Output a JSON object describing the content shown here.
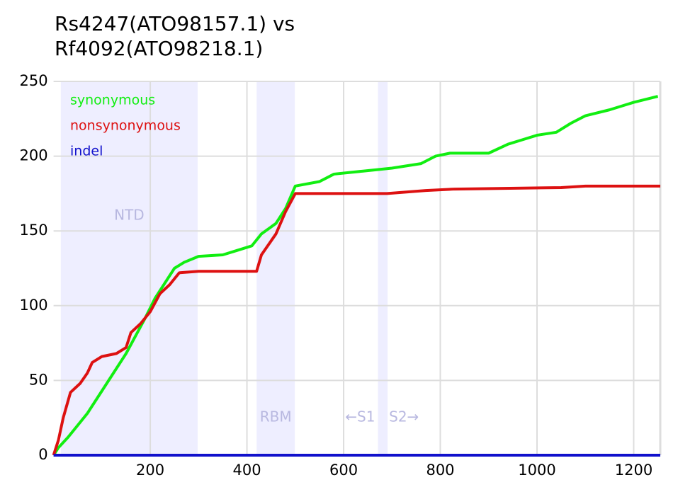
{
  "chart_data": {
    "type": "line",
    "title": [
      "Rs4247(ATO98157.1) vs",
      "Rf4092(ATO98218.1)"
    ],
    "xlim": [
      0,
      1255
    ],
    "ylim": [
      0,
      250
    ],
    "xticks": [
      200,
      400,
      600,
      800,
      1000,
      1200
    ],
    "yticks": [
      0,
      50,
      100,
      150,
      200,
      250
    ],
    "grid": true,
    "legend": "upper left",
    "regions": [
      {
        "label": "NTD",
        "start": 15,
        "end": 298
      },
      {
        "label": "RBM",
        "start": 420,
        "end": 499
      },
      {
        "start": 671,
        "end": 691
      }
    ],
    "annotations": [
      "←S1",
      "S2→"
    ],
    "series": [
      {
        "name": "synonymous",
        "color": "#11ee11",
        "x": [
          0,
          10,
          30,
          50,
          70,
          90,
          110,
          130,
          150,
          170,
          190,
          210,
          230,
          250,
          270,
          300,
          350,
          380,
          410,
          430,
          460,
          480,
          500,
          550,
          580,
          640,
          700,
          760,
          790,
          820,
          900,
          940,
          970,
          1000,
          1040,
          1070,
          1100,
          1150,
          1200,
          1250
        ],
        "values": [
          0,
          5,
          12,
          20,
          28,
          38,
          48,
          58,
          68,
          80,
          92,
          105,
          115,
          125,
          129,
          133,
          134,
          137,
          140,
          148,
          155,
          165,
          180,
          183,
          188,
          190,
          192,
          195,
          200,
          202,
          202,
          208,
          211,
          214,
          216,
          222,
          227,
          231,
          236,
          240
        ]
      },
      {
        "name": "nonsynonymous",
        "color": "#dd1111",
        "x": [
          0,
          10,
          20,
          35,
          55,
          70,
          80,
          100,
          130,
          150,
          160,
          180,
          200,
          220,
          240,
          260,
          300,
          420,
          430,
          460,
          480,
          500,
          690,
          770,
          830,
          1050,
          1100,
          1255
        ],
        "values": [
          0,
          10,
          25,
          42,
          48,
          55,
          62,
          66,
          68,
          72,
          82,
          88,
          96,
          108,
          114,
          122,
          123,
          123,
          134,
          148,
          163,
          175,
          175,
          177,
          178,
          179,
          180,
          180
        ]
      },
      {
        "name": "indel",
        "color": "#1111cc",
        "x": [
          0,
          1255
        ],
        "values": [
          0,
          0
        ]
      }
    ]
  }
}
